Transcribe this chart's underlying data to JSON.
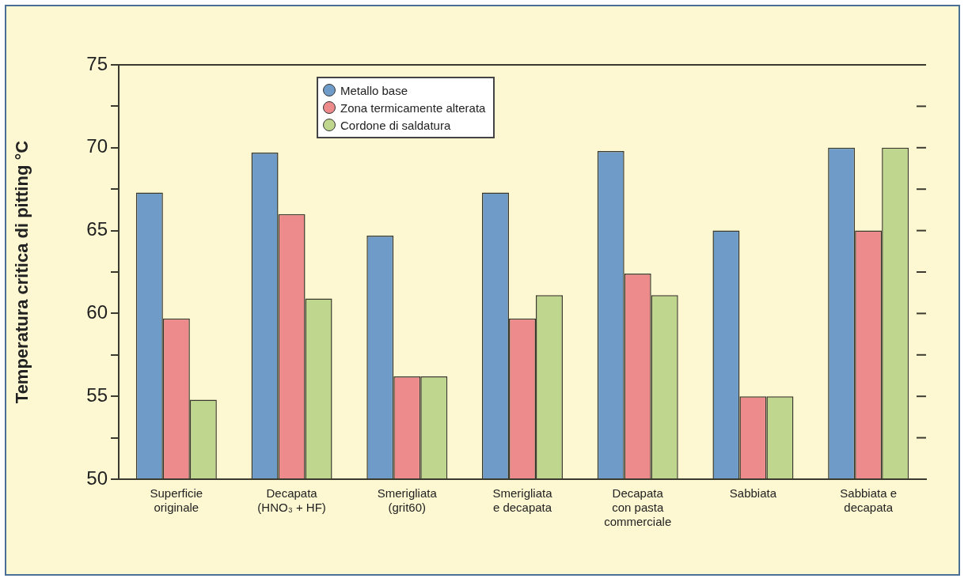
{
  "chart_data": {
    "type": "bar",
    "ylabel": "Temperatura critica di pitting °C",
    "categories": [
      "Superficie\noriginale",
      "Decapata\n(HNO₃ + HF)",
      "Smerigliata\n(grit60)",
      "Smerigliata\ne decapata",
      "Decapata\ncon pasta\ncommerciale",
      "Sabbiata",
      "Sabbiata e\ndecapata"
    ],
    "series": [
      {
        "name": "Metallo base",
        "color": "#6f9bc9",
        "values": [
          67.3,
          69.7,
          64.7,
          67.3,
          69.8,
          65.0,
          70.0
        ]
      },
      {
        "name": "Zona termicamente alterata",
        "color": "#ec8a8c",
        "values": [
          59.7,
          66.0,
          56.2,
          59.7,
          62.4,
          55.0,
          65.0
        ]
      },
      {
        "name": "Cordone di saldatura",
        "color": "#bfd68e",
        "values": [
          54.8,
          60.9,
          56.2,
          61.1,
          61.1,
          55.0,
          70.0
        ]
      }
    ],
    "ylim": [
      50,
      75
    ],
    "yticks": [
      50,
      {
        "value": 52.5,
        "label": null
      },
      55,
      {
        "value": 57.5,
        "label": null
      },
      60,
      {
        "value": 62.5,
        "label": null
      },
      65,
      {
        "value": 67.5,
        "label": null
      },
      70,
      {
        "value": 72.5,
        "label": null
      },
      75
    ],
    "legend": "top"
  }
}
